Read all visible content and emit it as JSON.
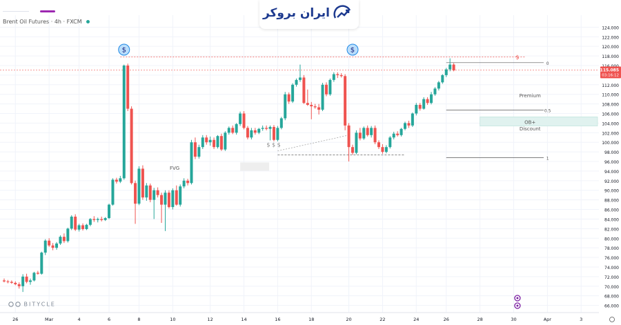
{
  "header": {
    "symbol_text": "Brent Oil Futures · 4h · FXCM"
  },
  "logo": {
    "brand_text": "ایران بروکر"
  },
  "watermark": {
    "text": "BITYCLE"
  },
  "chart_data": {
    "type": "candlestick",
    "ylim": [
      64.5,
      126.5
    ],
    "y_ticks": [
      "124.000",
      "122.000",
      "120.000",
      "118.000",
      "116.000",
      "114.000",
      "112.000",
      "110.000",
      "108.000",
      "106.000",
      "104.000",
      "102.000",
      "100.000",
      "98.000",
      "96.000",
      "94.000",
      "92.000",
      "90.000",
      "88.000",
      "86.000",
      "84.000",
      "82.000",
      "80.000",
      "78.000",
      "76.000",
      "74.000",
      "72.000",
      "70.000",
      "68.000",
      "66.000"
    ],
    "y_tick_values": [
      124,
      122,
      120,
      118,
      116,
      114,
      112,
      110,
      108,
      106,
      104,
      102,
      100,
      98,
      96,
      94,
      92,
      90,
      88,
      86,
      84,
      82,
      80,
      78,
      76,
      74,
      72,
      70,
      68,
      66
    ],
    "x_labels": [
      {
        "text": "26",
        "index": 3
      },
      {
        "text": "Mar",
        "index": 12
      },
      {
        "text": "4",
        "index": 20
      },
      {
        "text": "6",
        "index": 28
      },
      {
        "text": "8",
        "index": 36
      },
      {
        "text": "10",
        "index": 45
      },
      {
        "text": "12",
        "index": 55
      },
      {
        "text": "14",
        "index": 64
      },
      {
        "text": "16",
        "index": 73
      },
      {
        "text": "18",
        "index": 82
      },
      {
        "text": "20",
        "index": 92
      },
      {
        "text": "22",
        "index": 101
      },
      {
        "text": "24",
        "index": 110
      },
      {
        "text": "26",
        "index": 118
      },
      {
        "text": "28",
        "index": 127
      },
      {
        "text": "30",
        "index": 136
      },
      {
        "text": "Apr",
        "index": 145
      },
      {
        "text": "3",
        "index": 154
      }
    ],
    "current_price": 115.085,
    "current_price_label": "115.085",
    "countdown_label": "03:16:12",
    "colors": {
      "up": "#26a69a",
      "down": "#ef5350",
      "grid": "#f0f3fa",
      "price_line": "#ef5350",
      "ob_zone": "#e0f2ef"
    },
    "candles": [
      [
        71.2,
        71.6,
        70.8,
        71.0
      ],
      [
        71.0,
        71.3,
        70.6,
        70.9
      ],
      [
        70.9,
        71.2,
        70.5,
        70.7
      ],
      [
        70.7,
        71.0,
        70.2,
        70.4
      ],
      [
        70.4,
        70.8,
        69.5,
        70.0
      ],
      [
        70.0,
        72.5,
        68.8,
        72.0
      ],
      [
        72.0,
        72.6,
        70.6,
        70.9
      ],
      [
        70.9,
        71.6,
        70.3,
        71.2
      ],
      [
        71.2,
        73.0,
        71.0,
        72.8
      ],
      [
        72.8,
        73.2,
        72.4,
        72.6
      ],
      [
        72.6,
        77.2,
        72.4,
        77.0
      ],
      [
        77.0,
        79.8,
        76.5,
        79.5
      ],
      [
        79.5,
        80.0,
        78.2,
        78.5
      ],
      [
        78.5,
        79.0,
        77.5,
        78.0
      ],
      [
        78.0,
        79.2,
        77.6,
        78.9
      ],
      [
        78.9,
        80.6,
        78.6,
        80.3
      ],
      [
        80.3,
        81.0,
        79.0,
        79.4
      ],
      [
        79.4,
        82.2,
        79.1,
        82.0
      ],
      [
        82.0,
        84.8,
        81.7,
        84.5
      ],
      [
        84.5,
        85.0,
        81.5,
        81.8
      ],
      [
        81.8,
        83.0,
        81.4,
        82.7
      ],
      [
        82.7,
        83.1,
        81.6,
        81.9
      ],
      [
        81.9,
        83.0,
        81.7,
        82.8
      ],
      [
        82.8,
        84.2,
        82.5,
        84.0
      ],
      [
        84.0,
        84.6,
        83.4,
        83.8
      ],
      [
        83.8,
        84.3,
        83.3,
        84.0
      ],
      [
        84.0,
        84.5,
        83.5,
        83.8
      ],
      [
        83.8,
        84.4,
        83.6,
        84.2
      ],
      [
        84.2,
        87.2,
        84.0,
        87.0
      ],
      [
        87.0,
        92.5,
        86.8,
        92.2
      ],
      [
        92.2,
        92.6,
        91.4,
        91.8
      ],
      [
        91.8,
        93.0,
        91.5,
        92.5
      ],
      [
        92.5,
        116.2,
        92.2,
        116.0
      ],
      [
        116.0,
        116.4,
        106.5,
        107.0
      ],
      [
        107.0,
        107.5,
        91.2,
        91.5
      ],
      [
        91.5,
        92.0,
        83.0,
        87.2
      ],
      [
        87.2,
        95.0,
        86.9,
        94.5
      ],
      [
        94.5,
        95.2,
        88.0,
        88.5
      ],
      [
        88.5,
        91.5,
        87.8,
        91.0
      ],
      [
        91.0,
        91.4,
        87.5,
        88.0
      ],
      [
        88.0,
        90.5,
        84.0,
        90.0
      ],
      [
        90.0,
        90.6,
        88.5,
        89.0
      ],
      [
        89.0,
        89.5,
        83.2,
        87.0
      ],
      [
        87.0,
        90.0,
        81.5,
        89.5
      ],
      [
        89.5,
        90.0,
        86.2,
        86.5
      ],
      [
        86.5,
        90.4,
        86.0,
        90.0
      ],
      [
        90.0,
        91.0,
        86.8,
        87.0
      ],
      [
        87.0,
        91.2,
        86.6,
        90.8
      ],
      [
        90.8,
        92.5,
        90.4,
        92.0
      ],
      [
        92.0,
        92.4,
        91.0,
        91.5
      ],
      [
        91.5,
        100.5,
        91.2,
        100.0
      ],
      [
        100.0,
        101.0,
        96.5,
        97.0
      ],
      [
        97.0,
        99.5,
        96.6,
        99.0
      ],
      [
        99.0,
        101.5,
        98.6,
        101.0
      ],
      [
        101.0,
        101.5,
        99.5,
        100.0
      ],
      [
        100.0,
        101.2,
        99.3,
        100.5
      ],
      [
        100.5,
        101.0,
        98.6,
        99.0
      ],
      [
        99.0,
        101.5,
        98.7,
        101.3
      ],
      [
        101.3,
        101.8,
        98.2,
        98.5
      ],
      [
        98.5,
        102.3,
        98.2,
        102.0
      ],
      [
        102.0,
        103.3,
        101.6,
        103.0
      ],
      [
        103.0,
        103.5,
        101.7,
        102.0
      ],
      [
        102.0,
        104.0,
        101.6,
        103.8
      ],
      [
        103.8,
        106.4,
        103.4,
        106.0
      ],
      [
        106.0,
        106.5,
        102.7,
        103.0
      ],
      [
        103.0,
        103.4,
        100.6,
        101.0
      ],
      [
        101.0,
        103.0,
        100.6,
        102.5
      ],
      [
        102.5,
        103.0,
        101.6,
        102.0
      ],
      [
        102.0,
        103.0,
        101.7,
        102.8
      ],
      [
        102.8,
        103.5,
        102.4,
        103.0
      ],
      [
        103.0,
        103.5,
        102.5,
        102.8
      ],
      [
        102.8,
        103.5,
        100.4,
        103.2
      ],
      [
        103.2,
        103.6,
        100.2,
        100.5
      ],
      [
        100.5,
        103.4,
        100.2,
        103.0
      ],
      [
        103.0,
        105.3,
        102.7,
        105.0
      ],
      [
        105.0,
        110.5,
        104.6,
        110.0
      ],
      [
        110.0,
        110.4,
        108.0,
        108.5
      ],
      [
        108.5,
        112.3,
        108.2,
        112.0
      ],
      [
        112.0,
        113.3,
        111.6,
        113.0
      ],
      [
        113.0,
        116.2,
        112.6,
        113.5
      ],
      [
        113.5,
        114.0,
        108.0,
        108.2
      ],
      [
        108.2,
        111.0,
        107.6,
        107.8
      ],
      [
        107.8,
        108.4,
        104.8,
        107.5
      ],
      [
        107.5,
        108.0,
        107.0,
        107.3
      ],
      [
        107.3,
        108.0,
        105.8,
        106.8
      ],
      [
        106.8,
        112.4,
        106.5,
        112.0
      ],
      [
        112.0,
        112.5,
        109.6,
        110.0
      ],
      [
        110.0,
        113.3,
        109.7,
        113.0
      ],
      [
        113.0,
        114.6,
        112.6,
        114.2
      ],
      [
        114.2,
        114.6,
        113.4,
        114.0
      ],
      [
        114.0,
        114.4,
        113.5,
        113.8
      ],
      [
        113.8,
        114.2,
        102.5,
        103.5
      ],
      [
        103.5,
        104.0,
        96.0,
        99.0
      ],
      [
        99.0,
        99.5,
        97.4,
        97.8
      ],
      [
        97.8,
        102.5,
        97.5,
        102.0
      ],
      [
        102.0,
        103.0,
        100.4,
        100.8
      ],
      [
        100.8,
        103.3,
        100.5,
        103.0
      ],
      [
        103.0,
        103.5,
        101.2,
        101.5
      ],
      [
        101.5,
        103.4,
        101.0,
        103.0
      ],
      [
        103.0,
        103.5,
        99.6,
        100.0
      ],
      [
        100.0,
        100.4,
        98.6,
        99.0
      ],
      [
        99.0,
        99.6,
        97.6,
        98.0
      ],
      [
        98.0,
        99.4,
        97.7,
        99.0
      ],
      [
        99.0,
        101.3,
        98.7,
        101.0
      ],
      [
        101.0,
        102.2,
        100.6,
        101.8
      ],
      [
        101.8,
        102.3,
        101.2,
        101.5
      ],
      [
        101.5,
        103.0,
        101.2,
        102.8
      ],
      [
        102.8,
        104.3,
        102.5,
        104.0
      ],
      [
        104.0,
        104.5,
        103.0,
        103.5
      ],
      [
        103.5,
        106.2,
        103.2,
        106.0
      ],
      [
        106.0,
        108.2,
        105.6,
        107.8
      ],
      [
        107.8,
        108.2,
        106.6,
        107.0
      ],
      [
        107.0,
        109.4,
        106.8,
        109.0
      ],
      [
        109.0,
        109.4,
        107.8,
        108.2
      ],
      [
        108.2,
        110.5,
        107.9,
        110.0
      ],
      [
        110.0,
        111.5,
        109.7,
        111.2
      ],
      [
        111.2,
        112.8,
        110.8,
        112.5
      ],
      [
        112.5,
        114.2,
        112.2,
        114.0
      ],
      [
        114.0,
        115.5,
        113.6,
        115.2
      ],
      [
        115.2,
        117.5,
        114.8,
        116.2
      ],
      [
        116.2,
        116.5,
        114.8,
        115.0
      ]
    ],
    "swing_markers": [
      {
        "label": "$",
        "index": 32
      },
      {
        "label": "$",
        "index": 93
      }
    ],
    "annotations": [
      {
        "text": "FVG",
        "index": 49,
        "price": 94.7
      },
      {
        "text": "$ $ $",
        "index": 71,
        "price": 99.5
      },
      {
        "text": "Premium",
        "index": 133,
        "price": 109.8
      },
      {
        "text": "Discount",
        "index": 133,
        "price": 102.9
      },
      {
        "text": "OB+",
        "index": 133,
        "price": 104.3
      },
      {
        "text": "0",
        "index": 134,
        "price": 116.6
      },
      {
        "text": "0.5",
        "index": 134,
        "price": 106.7
      },
      {
        "text": "1",
        "index": 134,
        "price": 96.8
      },
      {
        "text": "$",
        "index": 137,
        "price": 117.8
      }
    ],
    "levels": {
      "top_liquidity": 117.8,
      "fib_0": 116.6,
      "fib_05": 106.7,
      "fib_1": 96.8,
      "ob_low": 103.4,
      "ob_high": 105.3,
      "equal_low": 97.4
    }
  }
}
